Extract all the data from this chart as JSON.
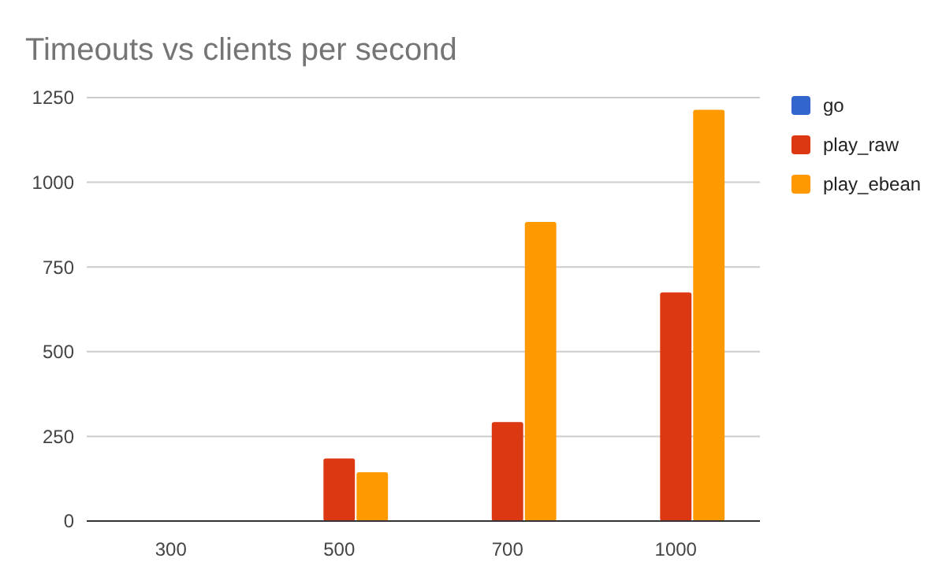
{
  "chart_data": {
    "type": "bar",
    "title": "Timeouts vs clients per second",
    "categories": [
      "300",
      "500",
      "700",
      "1000"
    ],
    "series": [
      {
        "name": "go",
        "color": "#3366cc",
        "values": [
          0,
          0,
          0,
          0
        ]
      },
      {
        "name": "play_raw",
        "color": "#dc3912",
        "values": [
          0,
          185,
          292,
          675
        ]
      },
      {
        "name": "play_ebean",
        "color": "#ff9900",
        "values": [
          0,
          144,
          883,
          1214
        ]
      }
    ],
    "ylim": [
      0,
      1250
    ],
    "yticks": [
      0,
      250,
      500,
      750,
      1000,
      1250
    ],
    "grid": "y",
    "legend": "right"
  }
}
